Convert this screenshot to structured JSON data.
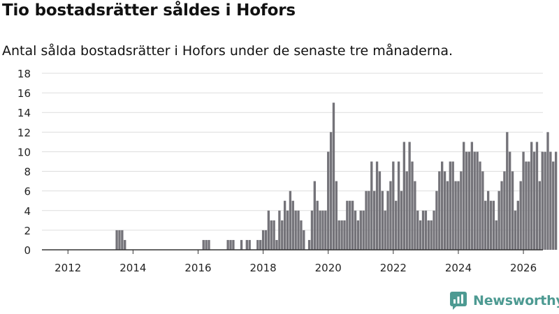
{
  "header": {
    "title": "Tio bostadsrätter såldes i Hofors",
    "subtitle": "Antal sålda bostadsrätter i Hofors under de senaste tre månaderna."
  },
  "brand": {
    "name": "Newsworthy"
  },
  "colors": {
    "bar": "#747379",
    "highlight": "#2f9b8c",
    "grid": "#dddddd",
    "axis": "#333333",
    "brand": "#4d9a92"
  },
  "chart_data": {
    "type": "bar",
    "title": "Tio bostadsrätter såldes i Hofors",
    "subtitle": "Antal sålda bostadsrätter i Hofors under de senaste tre månaderna.",
    "xlabel": "",
    "ylabel": "",
    "x_start": 2011.5,
    "x_step": 0.0833333,
    "xlim": [
      2011.2,
      2026.6
    ],
    "ylim": [
      0,
      18
    ],
    "yticks": [
      "0",
      "2",
      "4",
      "6",
      "8",
      "10",
      "12",
      "14",
      "16",
      "18"
    ],
    "xticks": [
      "2012",
      "2014",
      "2016",
      "2018",
      "2020",
      "2022",
      "2024",
      "2026"
    ],
    "grid": true,
    "values": [
      0,
      0,
      0,
      0,
      0,
      0,
      0,
      0,
      0,
      0,
      0,
      0,
      0,
      0,
      0,
      0,
      0,
      0,
      0,
      0,
      0,
      0,
      0,
      0,
      2,
      2,
      2,
      1,
      0,
      0,
      0,
      0,
      0,
      0,
      0,
      0,
      0,
      0,
      0,
      0,
      0,
      0,
      0,
      0,
      0,
      0,
      0,
      0,
      0,
      0,
      0,
      0,
      0,
      0,
      0,
      0,
      1,
      1,
      1,
      0,
      0,
      0,
      0,
      0,
      0,
      1,
      1,
      1,
      0,
      0,
      1,
      0,
      1,
      1,
      0,
      0,
      1,
      1,
      2,
      2,
      4,
      3,
      3,
      1,
      4,
      3,
      5,
      4,
      6,
      5,
      4,
      4,
      3,
      2,
      0,
      1,
      4,
      7,
      5,
      4,
      4,
      4,
      10,
      12,
      15,
      7,
      3,
      3,
      3,
      5,
      5,
      5,
      4,
      3,
      4,
      4,
      6,
      6,
      9,
      6,
      9,
      8,
      6,
      4,
      6,
      7,
      9,
      5,
      9,
      6,
      11,
      8,
      11,
      9,
      7,
      4,
      3,
      4,
      4,
      3,
      3,
      4,
      6,
      8,
      9,
      8,
      7,
      9,
      9,
      7,
      7,
      8,
      11,
      10,
      10,
      11,
      10,
      10,
      9,
      8,
      5,
      6,
      5,
      5,
      3,
      6,
      7,
      8,
      12,
      10,
      8,
      4,
      5,
      7,
      10,
      9,
      9,
      11,
      10,
      11,
      7,
      10,
      10,
      12,
      10,
      9,
      10
    ],
    "highlight_index": 188,
    "annotation": "10"
  }
}
